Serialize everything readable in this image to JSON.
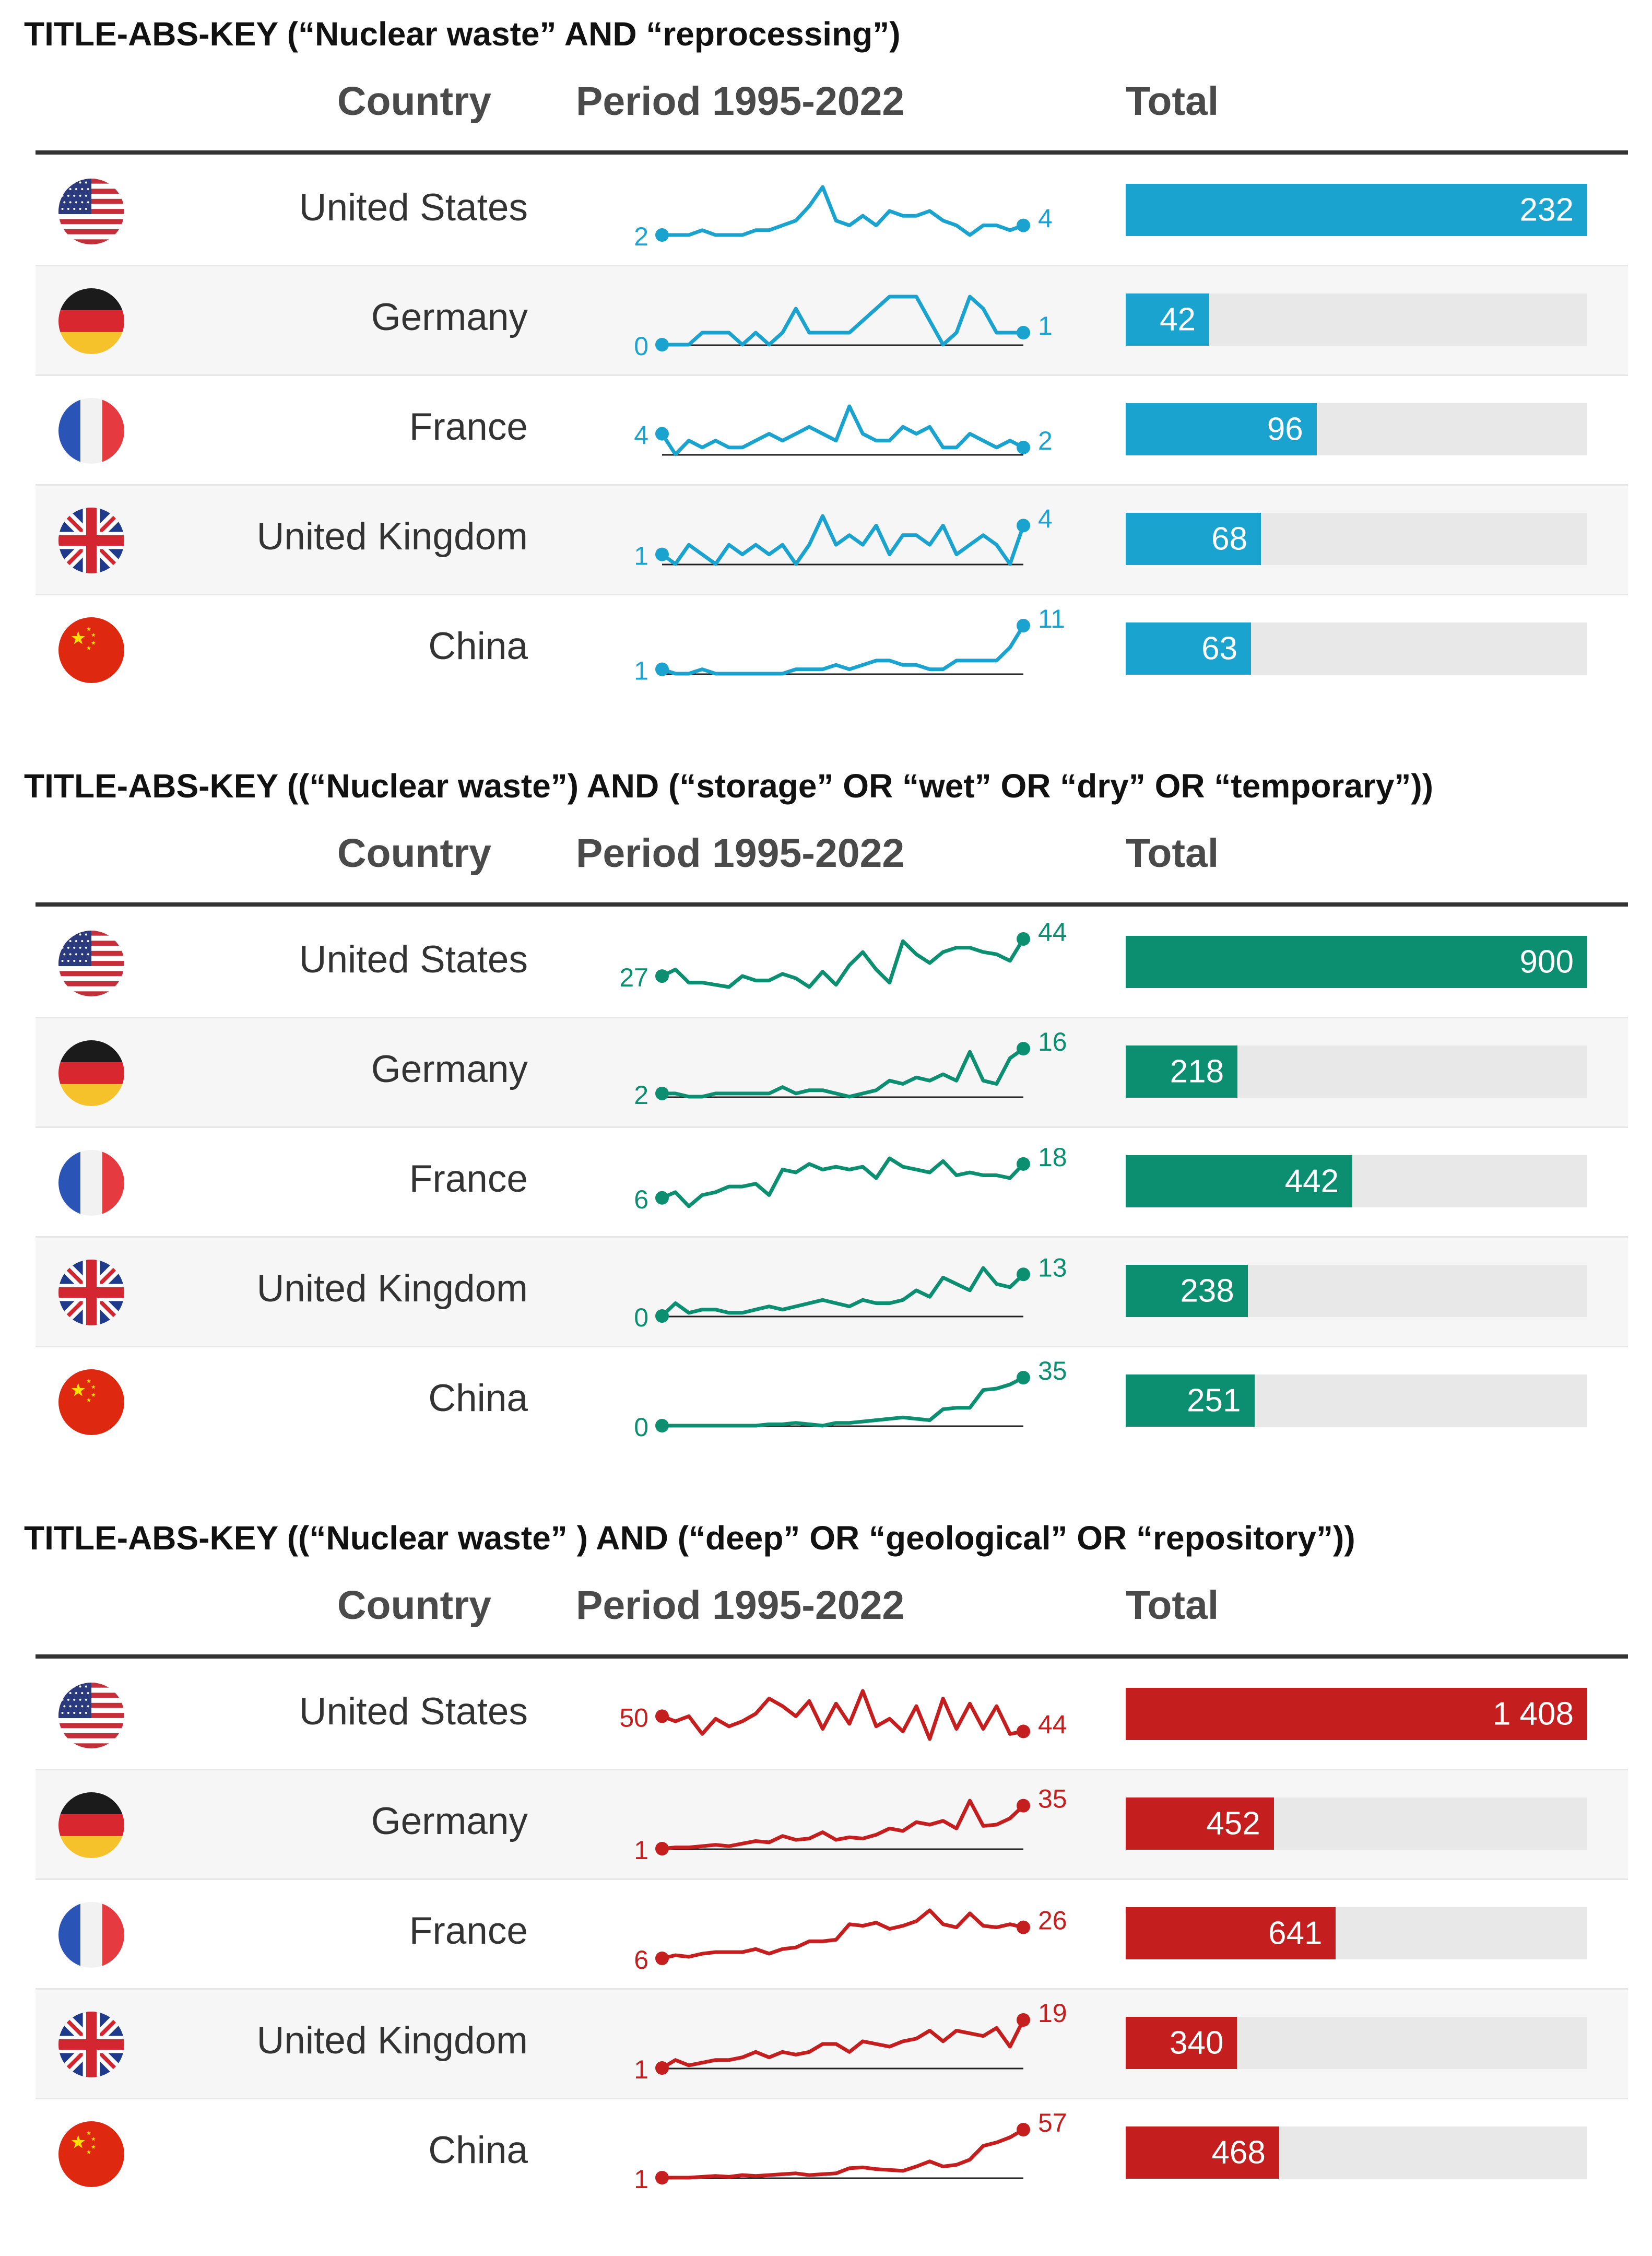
{
  "chart_data": [
    {
      "type": "table",
      "title": "TITLE-ABS-KEY (“Nuclear waste” AND “reprocessing”)",
      "headers": {
        "country": "Country",
        "period": "Period 1995-2022",
        "total": "Total"
      },
      "color": "#1ba3d0",
      "max_total": 232,
      "rows": [
        {
          "country": "United States",
          "flag": "us",
          "start": 2,
          "end": 4,
          "total": 232,
          "total_label": "232",
          "trend": [
            2,
            2,
            2,
            3,
            2,
            2,
            2,
            3,
            3,
            4,
            5,
            8,
            12,
            5,
            4,
            6,
            4,
            7,
            6,
            6,
            7,
            5,
            4,
            2,
            4,
            4,
            3,
            4
          ]
        },
        {
          "country": "Germany",
          "flag": "de",
          "start": 0,
          "end": 1,
          "total": 42,
          "total_label": "42",
          "trend": [
            0,
            0,
            0,
            1,
            1,
            1,
            0,
            1,
            0,
            1,
            3,
            1,
            1,
            1,
            1,
            2,
            3,
            4,
            4,
            4,
            2,
            0,
            1,
            4,
            3,
            1,
            1,
            1
          ]
        },
        {
          "country": "France",
          "flag": "fr",
          "start": 4,
          "end": 2,
          "total": 96,
          "total_label": "96",
          "trend": [
            4,
            1,
            3,
            2,
            3,
            2,
            2,
            3,
            4,
            3,
            4,
            5,
            4,
            3,
            8,
            4,
            3,
            3,
            5,
            4,
            5,
            2,
            2,
            4,
            3,
            2,
            3,
            2
          ]
        },
        {
          "country": "United Kingdom",
          "flag": "gb",
          "start": 1,
          "end": 4,
          "total": 68,
          "total_label": "68",
          "trend": [
            1,
            0,
            2,
            1,
            0,
            2,
            1,
            2,
            1,
            2,
            0,
            2,
            5,
            2,
            3,
            2,
            4,
            1,
            3,
            3,
            2,
            4,
            1,
            2,
            3,
            2,
            0,
            4
          ]
        },
        {
          "country": "China",
          "flag": "cn",
          "start": 1,
          "end": 11,
          "total": 63,
          "total_label": "63",
          "trend": [
            1,
            0,
            0,
            1,
            0,
            0,
            0,
            0,
            0,
            0,
            1,
            1,
            1,
            2,
            1,
            2,
            3,
            3,
            2,
            2,
            1,
            1,
            3,
            3,
            3,
            3,
            6,
            11
          ]
        }
      ]
    },
    {
      "type": "table",
      "title": "TITLE-ABS-KEY ((“Nuclear waste”) AND (“storage” OR “wet” OR “dry” OR “temporary”))",
      "headers": {
        "country": "Country",
        "period": "Period 1995-2022",
        "total": "Total"
      },
      "color": "#0b8f70",
      "max_total": 900,
      "rows": [
        {
          "country": "United States",
          "flag": "us",
          "start": 27,
          "end": 44,
          "total": 900,
          "total_label": "900",
          "trend": [
            27,
            30,
            24,
            24,
            23,
            22,
            27,
            25,
            25,
            28,
            26,
            22,
            29,
            23,
            32,
            38,
            30,
            24,
            43,
            37,
            33,
            38,
            40,
            40,
            38,
            37,
            34,
            44
          ]
        },
        {
          "country": "Germany",
          "flag": "de",
          "start": 2,
          "end": 16,
          "total": 218,
          "total_label": "218",
          "trend": [
            2,
            2,
            1,
            1,
            2,
            2,
            2,
            2,
            2,
            4,
            2,
            3,
            3,
            2,
            1,
            2,
            3,
            6,
            5,
            7,
            6,
            8,
            6,
            15,
            6,
            5,
            13,
            16
          ]
        },
        {
          "country": "France",
          "flag": "fr",
          "start": 6,
          "end": 18,
          "total": 442,
          "total_label": "442",
          "trend": [
            6,
            8,
            3,
            7,
            8,
            10,
            10,
            11,
            7,
            16,
            15,
            18,
            16,
            17,
            16,
            17,
            13,
            20,
            17,
            16,
            15,
            19,
            14,
            15,
            14,
            14,
            13,
            18
          ]
        },
        {
          "country": "United Kingdom",
          "flag": "gb",
          "start": 0,
          "end": 13,
          "total": 238,
          "total_label": "238",
          "trend": [
            0,
            4,
            1,
            2,
            2,
            1,
            1,
            2,
            3,
            2,
            3,
            4,
            5,
            4,
            3,
            5,
            4,
            4,
            5,
            8,
            6,
            12,
            10,
            8,
            15,
            10,
            9,
            13
          ]
        },
        {
          "country": "China",
          "flag": "cn",
          "start": 0,
          "end": 35,
          "total": 251,
          "total_label": "251",
          "trend": [
            0,
            0,
            0,
            0,
            0,
            0,
            0,
            0,
            1,
            1,
            2,
            1,
            0,
            2,
            2,
            3,
            4,
            5,
            6,
            5,
            4,
            12,
            13,
            13,
            26,
            27,
            30,
            35
          ]
        }
      ]
    },
    {
      "type": "table",
      "title": "TITLE-ABS-KEY ((“Nuclear waste” ) AND (“deep” OR “geological” OR “repository”))",
      "headers": {
        "country": "Country",
        "period": "Period 1995-2022",
        "total": "Total"
      },
      "color": "#c41e1e",
      "max_total": 1408,
      "rows": [
        {
          "country": "United States",
          "flag": "us",
          "start": 50,
          "end": 44,
          "total": 1408,
          "total_label": "1 408",
          "trend": [
            50,
            48,
            50,
            43,
            49,
            46,
            48,
            51,
            57,
            54,
            50,
            56,
            45,
            55,
            47,
            60,
            46,
            49,
            44,
            54,
            41,
            57,
            45,
            55,
            45,
            54,
            43,
            44
          ]
        },
        {
          "country": "Germany",
          "flag": "de",
          "start": 1,
          "end": 35,
          "total": 452,
          "total_label": "452",
          "trend": [
            1,
            2,
            2,
            3,
            4,
            3,
            5,
            7,
            6,
            11,
            8,
            9,
            14,
            8,
            10,
            9,
            12,
            17,
            15,
            22,
            20,
            23,
            17,
            39,
            19,
            20,
            25,
            35
          ]
        },
        {
          "country": "France",
          "flag": "fr",
          "start": 6,
          "end": 26,
          "total": 641,
          "total_label": "641",
          "trend": [
            6,
            8,
            7,
            9,
            10,
            10,
            10,
            12,
            9,
            12,
            13,
            17,
            17,
            18,
            28,
            27,
            29,
            25,
            27,
            30,
            37,
            28,
            26,
            35,
            27,
            26,
            28,
            26
          ]
        },
        {
          "country": "United Kingdom",
          "flag": "gb",
          "start": 1,
          "end": 19,
          "total": 340,
          "total_label": "340",
          "trend": [
            1,
            4,
            2,
            3,
            4,
            4,
            5,
            7,
            5,
            7,
            6,
            7,
            10,
            10,
            7,
            11,
            10,
            9,
            11,
            12,
            15,
            11,
            15,
            14,
            13,
            16,
            9,
            19
          ]
        },
        {
          "country": "China",
          "flag": "cn",
          "start": 1,
          "end": 57,
          "total": 468,
          "total_label": "468",
          "trend": [
            1,
            1,
            1,
            2,
            3,
            2,
            4,
            3,
            4,
            5,
            6,
            4,
            5,
            6,
            12,
            13,
            11,
            10,
            9,
            14,
            20,
            14,
            16,
            22,
            38,
            42,
            48,
            57
          ]
        }
      ]
    }
  ]
}
